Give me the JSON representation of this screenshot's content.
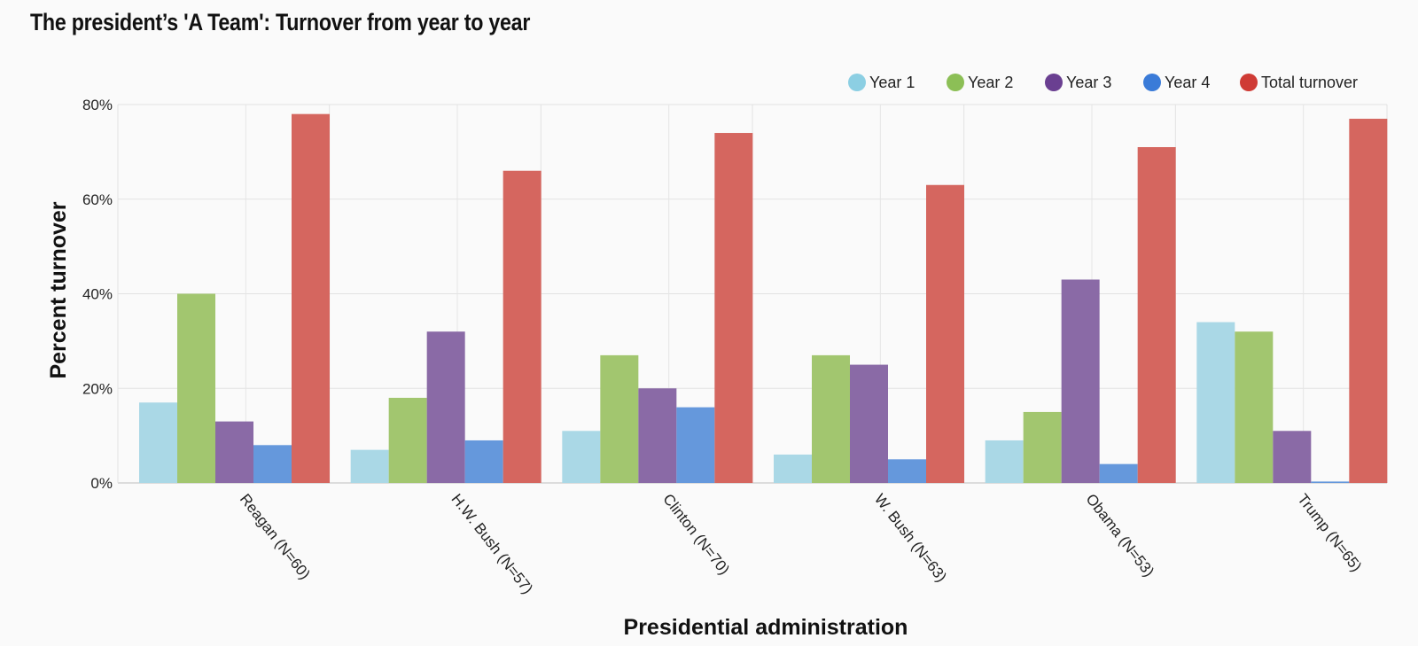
{
  "chart_data": {
    "type": "bar",
    "title": "The president’s 'A Team': Turnover from year to year",
    "xlabel": "Presidential administration",
    "ylabel": "Percent turnover",
    "categories": [
      "Reagan (N=60)",
      "H.W. Bush (N=57)",
      "Clinton (N=70)",
      "W. Bush (N=63)",
      "Obama (N=53)",
      "Trump (N=65)"
    ],
    "series": [
      {
        "name": "Year 1",
        "color": "#aad8e6",
        "values": [
          17,
          7,
          11,
          6,
          9,
          34
        ]
      },
      {
        "name": "Year 2",
        "color": "#a2c66f",
        "values": [
          40,
          18,
          27,
          27,
          15,
          32
        ]
      },
      {
        "name": "Year 3",
        "color": "#8a6aa6",
        "values": [
          13,
          32,
          20,
          25,
          43,
          11
        ]
      },
      {
        "name": "Year 4",
        "color": "#6598dc",
        "values": [
          8,
          9,
          16,
          5,
          4,
          0.3
        ]
      },
      {
        "name": "Total turnover",
        "color": "#d5665f",
        "values": [
          78,
          66,
          74,
          63,
          71,
          77
        ]
      }
    ],
    "legend_colors": [
      "#8ccfe3",
      "#8cbf56",
      "#6a3f91",
      "#3a7bd8",
      "#cf3b35"
    ],
    "ylim": [
      0,
      80
    ],
    "yticks": [
      0,
      20,
      40,
      60,
      80
    ],
    "ytick_suffix": "%",
    "grid": true,
    "legend_position": "top-right"
  }
}
